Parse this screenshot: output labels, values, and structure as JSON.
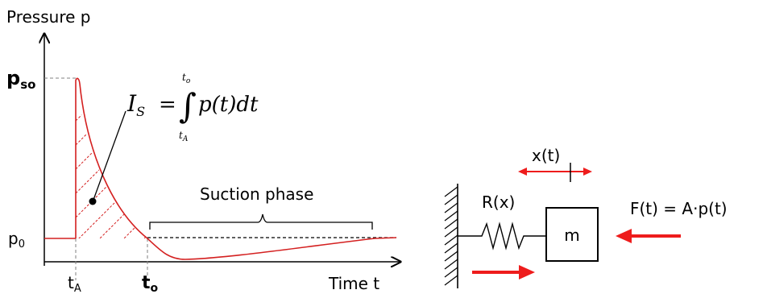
{
  "plot": {
    "y_axis_label": "Pressure p",
    "x_axis_label": "Time t",
    "peak_label_main": "p",
    "peak_label_sub": "so",
    "ambient_label_main": "p",
    "ambient_label_sub": "0",
    "ta_label_main": "t",
    "ta_label_sub": "A",
    "to_label_main": "t",
    "to_label_sub": "o",
    "suction_label": "Suction phase"
  },
  "formula": {
    "lhs_main": "I",
    "lhs_sub": "S",
    "equals": "=",
    "integral": "∫",
    "upper_main": "t",
    "upper_sub": "o",
    "lower_main": "t",
    "lower_sub": "A",
    "integrand": "p(t)dt"
  },
  "model": {
    "displacement_label": "x(t)",
    "spring_label": "R(x)",
    "mass_label": "m",
    "force_label": "F(t) = A·p(t)"
  },
  "colors": {
    "curve": "#d42020",
    "arrow": "#ee1c1c",
    "ink": "#000000",
    "dashed": "#808080"
  }
}
